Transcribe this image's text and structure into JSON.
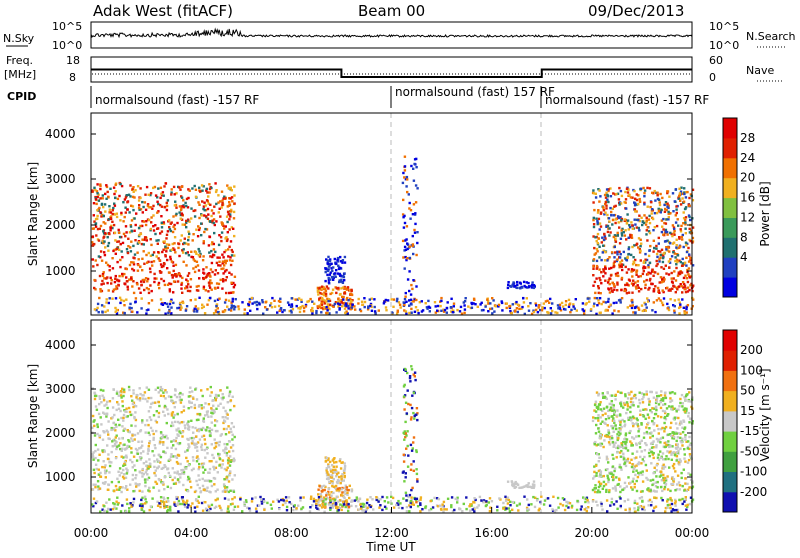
{
  "header": {
    "station": "Adak West (fitACF)",
    "beam": "Beam 00",
    "date": "09/Dec/2013"
  },
  "noise": {
    "left_label": "N.Sky",
    "right_label": "N.Search",
    "ticks_left": [
      "10^5",
      "10^0"
    ],
    "ticks_right": [
      "10^5",
      "10^0"
    ]
  },
  "freq": {
    "left_label_1": "Freq.",
    "left_label_2": "[MHz]",
    "left_ticks": [
      "18",
      "8"
    ],
    "right_label": "Nave",
    "right_ticks": [
      "60",
      "0"
    ],
    "segments": [
      {
        "start_h": 0,
        "end_h": 10.0,
        "value": 13
      },
      {
        "start_h": 10.0,
        "end_h": 18.0,
        "value": 10
      },
      {
        "start_h": 18.0,
        "end_h": 24.0,
        "value": 13
      }
    ]
  },
  "cpid": {
    "label": "CPID",
    "segments": [
      {
        "start_h": 0,
        "text": "normalsound (fast) -157 RF"
      },
      {
        "start_h": 12,
        "text": "normalsound (fast) 157 RF"
      },
      {
        "start_h": 18,
        "text": "normalsound (fast) -157 RF"
      }
    ]
  },
  "x_axis": {
    "title": "Time UT",
    "ticks": [
      "00:00",
      "04:00",
      "08:00",
      "12:00",
      "16:00",
      "20:00",
      "00:00"
    ]
  },
  "chart_data": [
    {
      "type": "heatmap",
      "quantity": "power",
      "ylabel": "Slant Range [km]",
      "yticks": [
        "1000",
        "2000",
        "3000",
        "4000"
      ],
      "ylim": [
        200,
        4600
      ],
      "xlim_hours": [
        0,
        24
      ],
      "colorbar_label": "Power [dB]",
      "colorbar_ticks": [
        "28",
        "24",
        "20",
        "16",
        "12",
        "8",
        "4"
      ],
      "colors": [
        "#0000e0",
        "#2040c0",
        "#207070",
        "#3a9a5a",
        "#80c040",
        "#f0b020",
        "#f07000",
        "#e02000",
        "#e00000"
      ]
    },
    {
      "type": "heatmap",
      "quantity": "velocity",
      "ylabel": "Slant Range [km]",
      "yticks": [
        "1000",
        "2000",
        "3000",
        "4000"
      ],
      "ylim": [
        200,
        4600
      ],
      "xlim_hours": [
        0,
        24
      ],
      "colorbar_label": "Velocity [m s⁻¹]",
      "colorbar_ticks": [
        "200",
        "100",
        "50",
        "15",
        "-15",
        "-50",
        "-100",
        "-200"
      ],
      "colors": [
        "#1010b0",
        "#207080",
        "#40a040",
        "#70d040",
        "#c8c8c8",
        "#f0b020",
        "#f07010",
        "#e02000",
        "#e00000"
      ]
    }
  ]
}
